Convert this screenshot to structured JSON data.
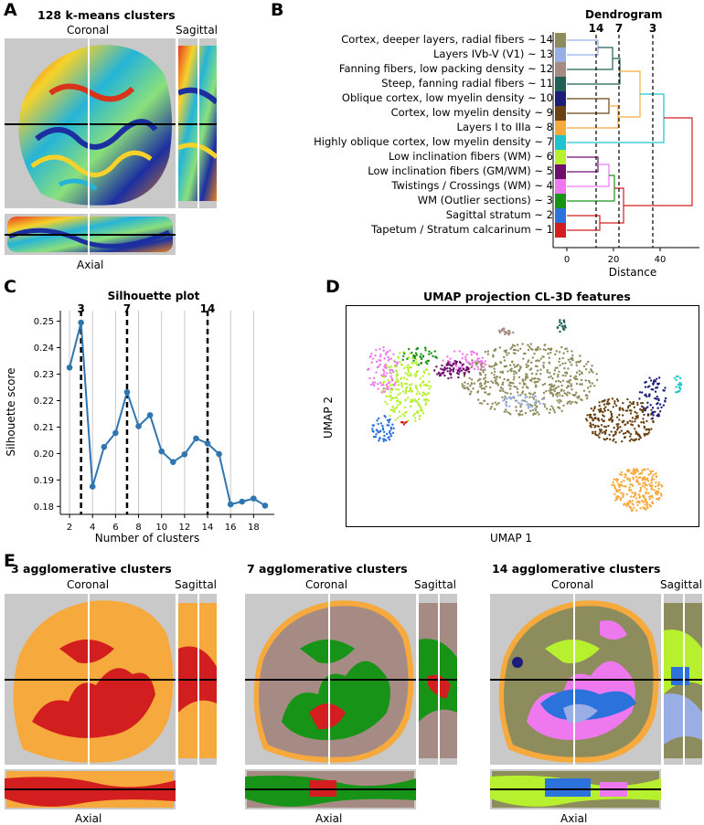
{
  "panels": {
    "a": "A",
    "b": "B",
    "c": "C",
    "d": "D",
    "e": "E"
  },
  "kmeans": {
    "title": "128 k-means clusters",
    "coronal": "Coronal",
    "sagittal": "Sagittal",
    "axial": "Axial"
  },
  "dendrogram": {
    "title": "Dendrogram",
    "xlabel": "Distance",
    "ticks": [
      "0",
      "20",
      "40"
    ],
    "cut_labels": [
      "14",
      "7",
      "3"
    ],
    "clusters": [
      {
        "label": "Cortex, deeper layers, radial fibers ~ 14",
        "color": "#8c8c5c"
      },
      {
        "label": "Layers IVb-V (V1) ~ 13",
        "color": "#9aaee6"
      },
      {
        "label": "Fanning fibers, low packing density ~ 12",
        "color": "#a58b84"
      },
      {
        "label": "Steep, fanning radial fibers ~ 11",
        "color": "#1e6055"
      },
      {
        "label": "Oblique cortex, low myelin density ~ 10",
        "color": "#1c1c7a"
      },
      {
        "label": "Cortex, low myelin density ~ 9",
        "color": "#6a4314"
      },
      {
        "label": "Layers I to IIIa ~ 8",
        "color": "#f6a93c"
      },
      {
        "label": "Highly oblique cortex, low myelin density ~ 7",
        "color": "#1fc3cf"
      },
      {
        "label": "Low inclination fibers (WM) ~ 6",
        "color": "#b6f02e"
      },
      {
        "label": "Low inclination fibers (GM/WM) ~ 5",
        "color": "#6e0f6e"
      },
      {
        "label": "Twistings / Crossings (WM) ~ 4",
        "color": "#ee78ee"
      },
      {
        "label": "WM (Outlier sections) ~ 3",
        "color": "#179417"
      },
      {
        "label": "Sagittal stratum ~ 2",
        "color": "#2b72dc"
      },
      {
        "label": "Tapetum / Stratum calcarinum ~ 1",
        "color": "#d21e1e"
      }
    ]
  },
  "chart_data": [
    {
      "type": "line",
      "title": "Silhouette plot",
      "xlabel": "Number of clusters",
      "ylabel": "Silhouette score",
      "x": [
        2,
        3,
        4,
        5,
        6,
        7,
        8,
        9,
        10,
        11,
        12,
        13,
        14,
        15,
        16,
        17,
        18,
        19
      ],
      "values": [
        0.2325,
        0.2495,
        0.1875,
        0.2025,
        0.2078,
        0.2232,
        0.2103,
        0.2145,
        0.2008,
        0.1968,
        0.1997,
        0.2057,
        0.2038,
        0.1998,
        0.1808,
        0.1818,
        0.183,
        0.1803
      ],
      "ylim": [
        0.177,
        0.254
      ],
      "xlim": [
        1.2,
        19.8
      ],
      "xticks": [
        2,
        4,
        6,
        8,
        10,
        12,
        14,
        16,
        18
      ],
      "yticks": [
        "0.18",
        "0.19",
        "0.20",
        "0.21",
        "0.22",
        "0.23",
        "0.24",
        "0.25"
      ],
      "highlight_x": [
        3,
        7,
        14
      ],
      "highlight_labels": [
        "3",
        "7",
        "14"
      ],
      "line_color": "#2f76b0"
    },
    {
      "type": "scatter",
      "title": "UMAP projection CL-3D features",
      "xlabel": "UMAP 1",
      "ylabel": "UMAP 2"
    }
  ],
  "agglomerative": [
    {
      "title": "3 agglomerative clusters",
      "coronal": "Coronal",
      "sagittal": "Sagittal",
      "axial": "Axial"
    },
    {
      "title": "7 agglomerative clusters",
      "coronal": "Coronal",
      "sagittal": "Sagittal",
      "axial": "Axial"
    },
    {
      "title": "14 agglomerative clusters",
      "coronal": "Coronal",
      "sagittal": "Sagittal",
      "axial": "Axial"
    }
  ]
}
